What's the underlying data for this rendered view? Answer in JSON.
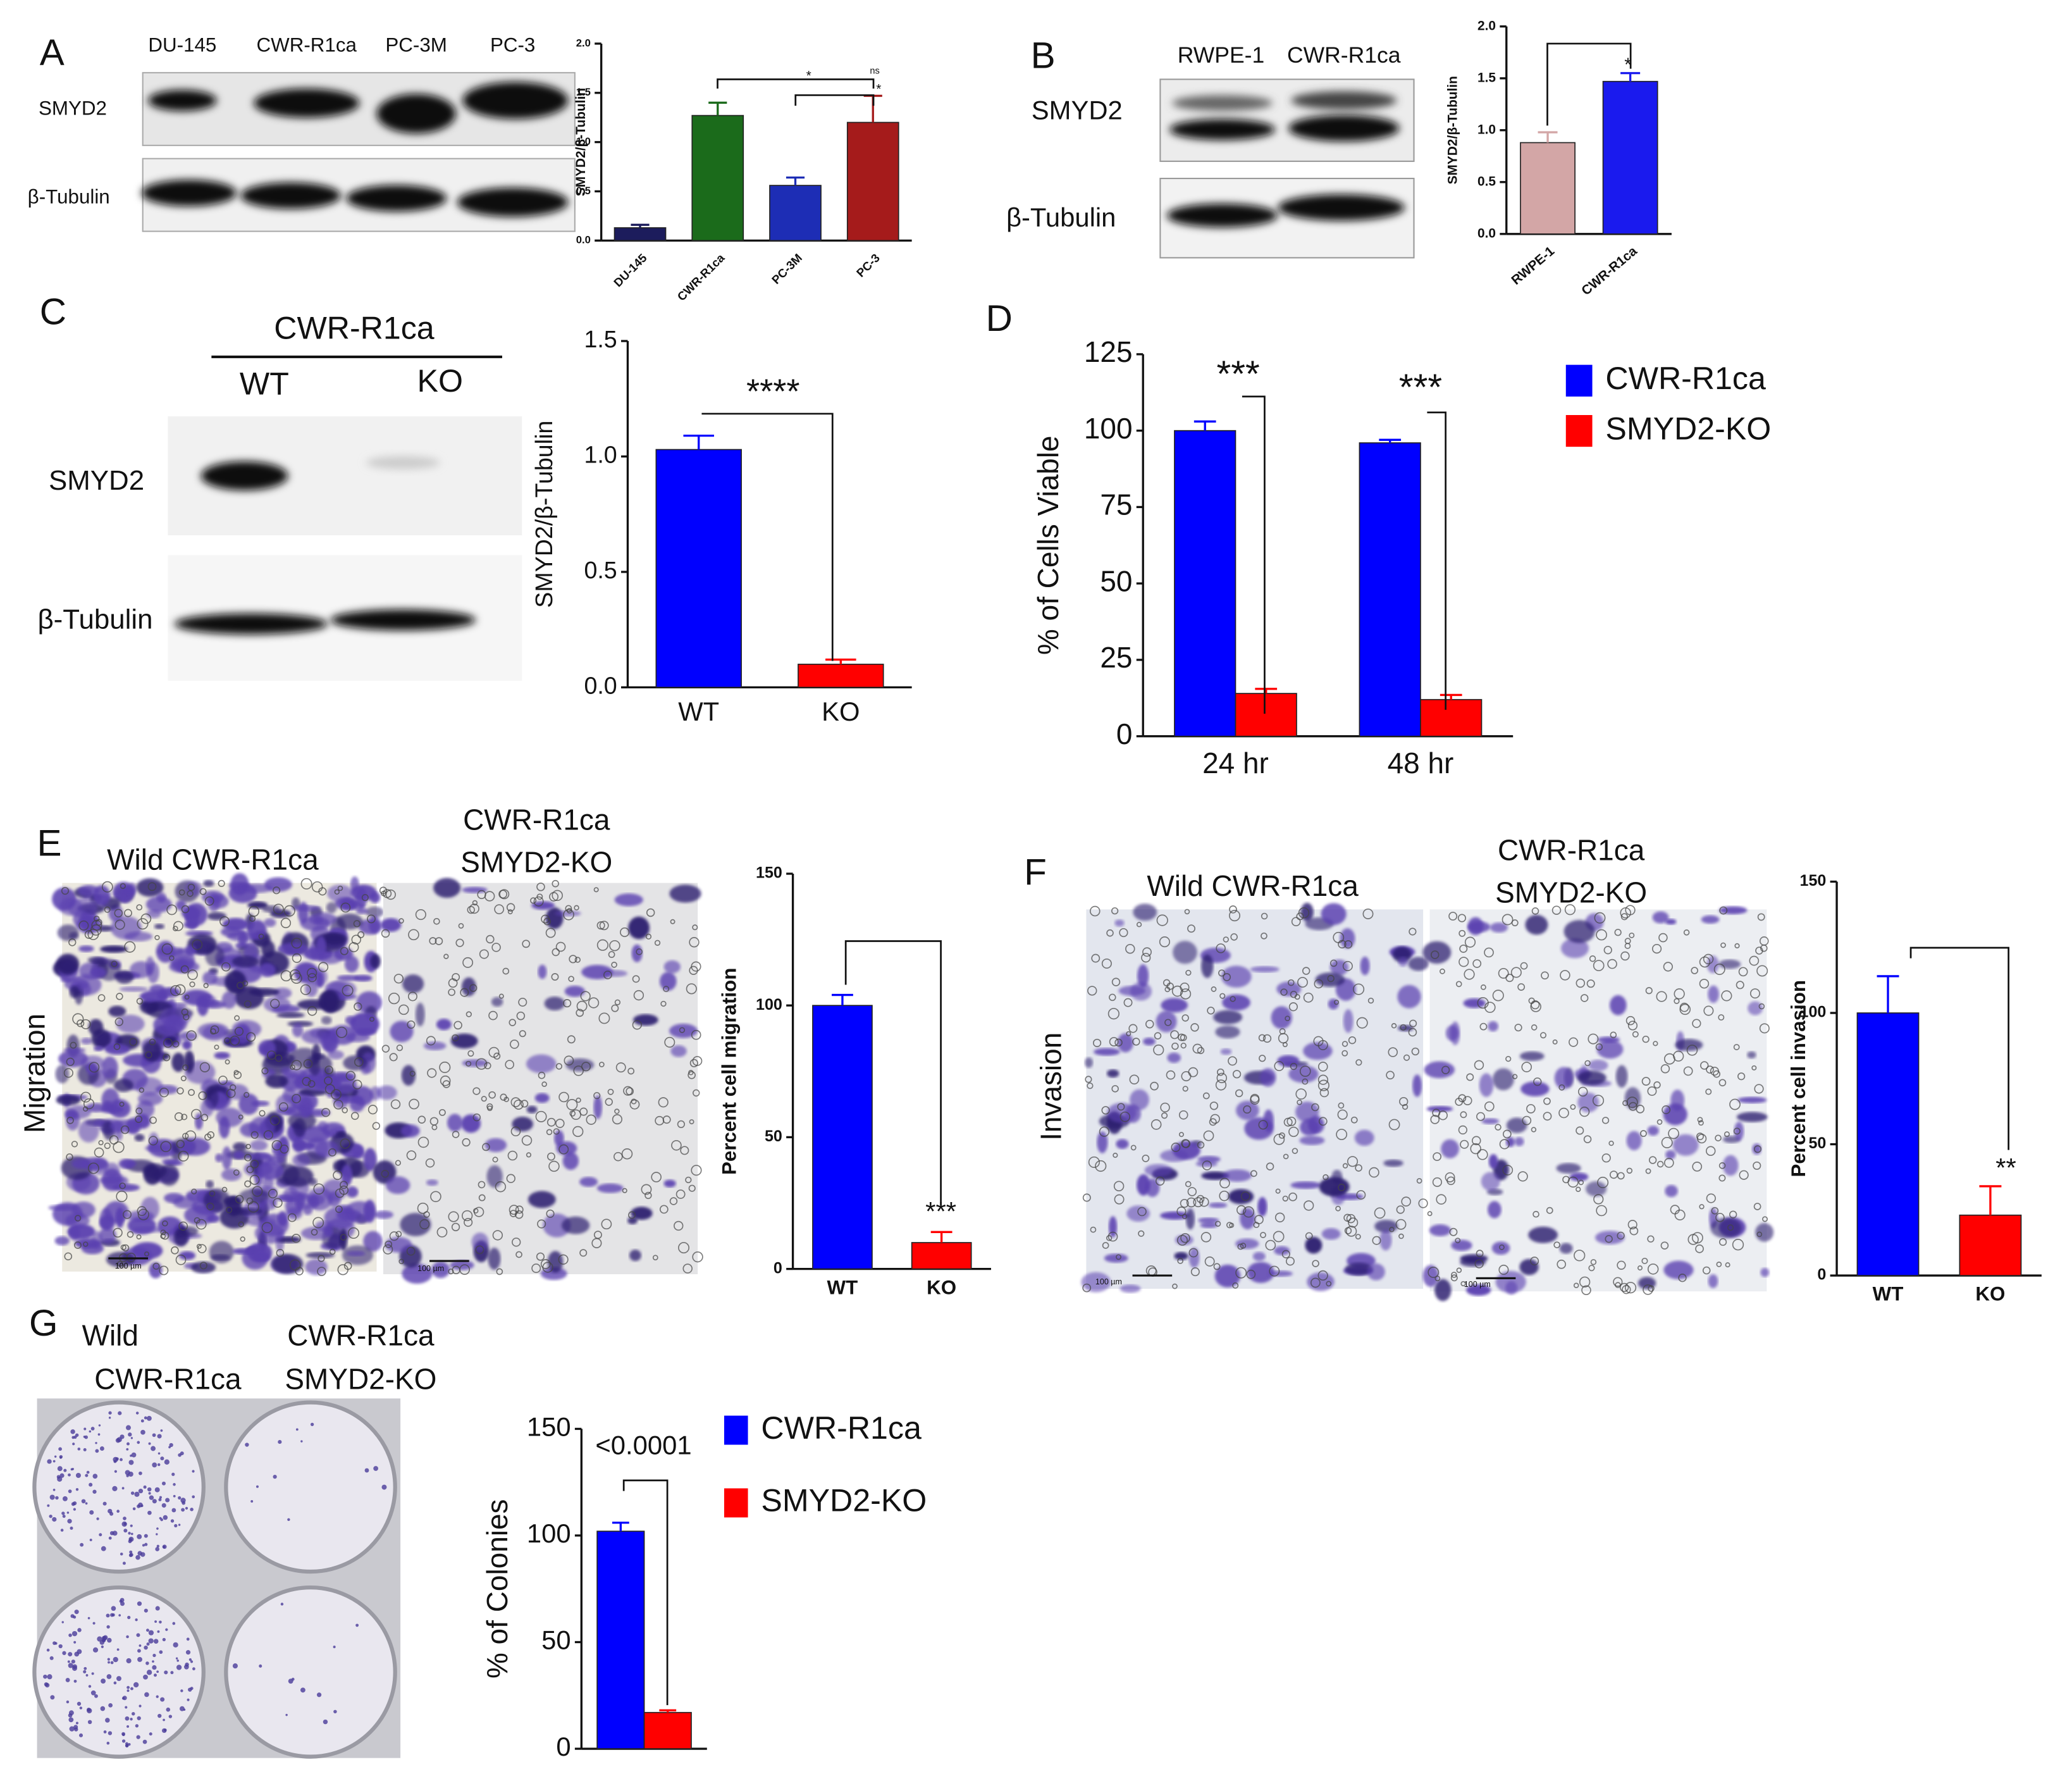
{
  "figure": {
    "panel_labels": [
      "A",
      "B",
      "C",
      "D",
      "E",
      "F",
      "G"
    ],
    "A": {
      "lanes": [
        "DU-145",
        "CWR-R1ca",
        "PC-3M",
        "PC-3"
      ],
      "rows": [
        "SMYD2",
        "β-Tubulin"
      ]
    },
    "B": {
      "lanes": [
        "RWPE-1",
        "CWR-R1ca"
      ],
      "rows": [
        "SMYD2",
        "β-Tubulin"
      ]
    },
    "C": {
      "header": "CWR-R1ca",
      "lanes": [
        "WT",
        "KO"
      ],
      "rows": [
        "SMYD2",
        "β-Tubulin"
      ]
    },
    "E": {
      "titles": [
        [
          "Wild CWR-R1ca"
        ],
        [
          "CWR-R1ca",
          "SMYD2-KO"
        ]
      ],
      "side_label": "Migration",
      "scale_bars": [
        "100 µm",
        "100 µm"
      ]
    },
    "F": {
      "titles": [
        [
          "Wild CWR-R1ca"
        ],
        [
          "CWR-R1ca",
          "SMYD2-KO"
        ]
      ],
      "side_label": "Invasion",
      "scale_bars": [
        "100 µm",
        "100 µm"
      ]
    },
    "G": {
      "titles": [
        [
          "Wild",
          "CWR-R1ca"
        ],
        [
          "CWR-R1ca",
          "SMYD2-KO"
        ]
      ]
    }
  },
  "chart_data": [
    {
      "type": "bar",
      "ylabel": "SMYD2/β-Tubulin",
      "categories": [
        "DU-145",
        "CWR-R1ca",
        "PC-3M",
        "PC-3"
      ],
      "values": [
        0.13,
        1.27,
        0.56,
        1.2
      ],
      "errors": [
        0.03,
        0.13,
        0.08,
        0.27
      ],
      "colors": [
        "#1c1c5c",
        "#1b6b1b",
        "#1d2db5",
        "#a51b1b"
      ],
      "ylim": [
        0,
        2
      ],
      "yticks": [
        {
          "value": 0,
          "label": "0.0"
        },
        {
          "value": 0.5,
          "label": "0.5"
        },
        {
          "value": 1,
          "label": "1.0"
        },
        {
          "value": 1.5,
          "label": "1.5"
        },
        {
          "value": 2,
          "label": "2.0"
        }
      ],
      "annotations": [
        "*",
        "ns",
        "*"
      ]
    },
    {
      "type": "bar",
      "ylabel": "SMYD2/β-Tubulin",
      "categories": [
        "RWPE-1",
        "CWR-R1ca"
      ],
      "values": [
        0.88,
        1.47
      ],
      "errors": [
        0.1,
        0.08
      ],
      "colors": [
        "#d3a6a6",
        "#1a1aee"
      ],
      "ylim": [
        0,
        2
      ],
      "yticks": [
        {
          "value": 0,
          "label": "0.0"
        },
        {
          "value": 0.5,
          "label": "0.5"
        },
        {
          "value": 1,
          "label": "1.0"
        },
        {
          "value": 1.5,
          "label": "1.5"
        },
        {
          "value": 2,
          "label": "2.0"
        }
      ],
      "annotations": [
        "*"
      ]
    },
    {
      "type": "bar",
      "ylabel": "SMYD2/β-Tubulin",
      "categories": [
        "WT",
        "KO"
      ],
      "values": [
        1.03,
        0.1
      ],
      "errors": [
        0.06,
        0.02
      ],
      "colors": [
        "#0000ff",
        "#ff0000"
      ],
      "ylim": [
        0,
        1.5
      ],
      "yticks": [
        {
          "value": 0,
          "label": "0.0"
        },
        {
          "value": 0.5,
          "label": "0.5"
        },
        {
          "value": 1,
          "label": "1.0"
        },
        {
          "value": 1.5,
          "label": "1.5"
        }
      ],
      "annotations": [
        "****"
      ]
    },
    {
      "type": "bar",
      "ylabel": "% of Cells Viable",
      "categories": [
        "24 hr",
        "48 hr"
      ],
      "series": [
        {
          "name": "CWR-R1ca",
          "color": "#0000ff",
          "values": [
            100,
            96
          ],
          "errors": [
            3,
            1
          ]
        },
        {
          "name": "SMYD2-KO",
          "color": "#ff0000",
          "values": [
            14,
            12
          ],
          "errors": [
            1.5,
            1.5
          ]
        }
      ],
      "ylim": [
        0,
        125
      ],
      "yticks": [
        0,
        25,
        50,
        75,
        100,
        125
      ],
      "annotations": [
        "***",
        "***"
      ],
      "legend": true
    },
    {
      "type": "bar",
      "ylabel": "Percent cell migration",
      "categories": [
        "WT",
        "KO"
      ],
      "values": [
        100,
        10
      ],
      "errors": [
        4,
        4
      ],
      "colors": [
        "#0000ff",
        "#ff0000"
      ],
      "ylim": [
        0,
        150
      ],
      "yticks": [
        0,
        50,
        100,
        150
      ],
      "annotations": [
        "***"
      ]
    },
    {
      "type": "bar",
      "ylabel": "Percent cell invasion",
      "categories": [
        "WT",
        "KO"
      ],
      "values": [
        100,
        23
      ],
      "errors": [
        14,
        11
      ],
      "colors": [
        "#0000ff",
        "#ff0000"
      ],
      "ylim": [
        0,
        150
      ],
      "yticks": [
        0,
        50,
        100,
        150
      ],
      "annotations": [
        "**"
      ]
    },
    {
      "type": "bar",
      "ylabel": "% of Colonies",
      "categories": [
        null
      ],
      "series": [
        {
          "name": "CWR-R1ca",
          "color": "#0000ff",
          "values": [
            102
          ],
          "errors": [
            4
          ]
        },
        {
          "name": "SMYD2-KO",
          "color": "#ff0000",
          "values": [
            17
          ],
          "errors": [
            1
          ]
        }
      ],
      "ylim": [
        0,
        150
      ],
      "yticks": [
        0,
        50,
        100,
        150
      ],
      "annotations": [
        "<0.0001"
      ],
      "legend": true
    }
  ]
}
